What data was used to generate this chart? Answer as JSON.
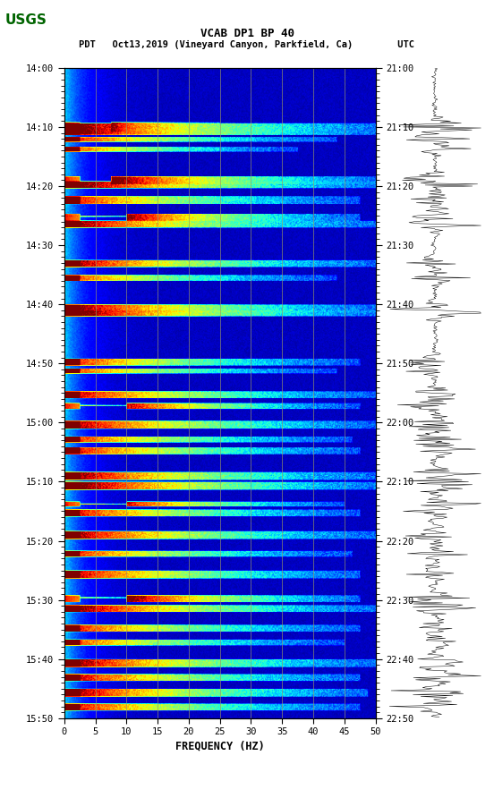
{
  "title_line1": "VCAB DP1 BP 40",
  "title_line2": "PDT   Oct13,2019 (Vineyard Canyon, Parkfield, Ca)        UTC",
  "xlabel": "FREQUENCY (HZ)",
  "freq_min": 0,
  "freq_max": 50,
  "freq_ticks": [
    0,
    5,
    10,
    15,
    20,
    25,
    30,
    35,
    40,
    45,
    50
  ],
  "time_labels_pdt": [
    "14:00",
    "14:10",
    "14:20",
    "14:30",
    "14:40",
    "14:50",
    "15:00",
    "15:10",
    "15:20",
    "15:30",
    "15:40",
    "15:50"
  ],
  "time_labels_utc": [
    "21:00",
    "21:10",
    "21:20",
    "21:30",
    "21:40",
    "21:50",
    "22:00",
    "22:10",
    "22:20",
    "22:30",
    "22:40",
    "22:50"
  ],
  "num_time_steps": 660,
  "num_freq_bins": 400,
  "vertical_line_freqs": [
    5,
    10,
    15,
    20,
    25,
    30,
    35,
    40,
    45
  ],
  "colormap": "jet",
  "bg_color": "#ffffff",
  "logo_color": "#006400",
  "vline_color": "#999966",
  "fig_width": 5.52,
  "fig_height": 8.92,
  "seismic_events_rows": [
    [
      55,
      65,
      60,
      200,
      0.85
    ],
    [
      56,
      68,
      0,
      400,
      0.95
    ],
    [
      70,
      75,
      0,
      350,
      0.8
    ],
    [
      80,
      85,
      0,
      300,
      0.75
    ],
    [
      110,
      118,
      60,
      400,
      0.9
    ],
    [
      115,
      122,
      0,
      400,
      0.95
    ],
    [
      130,
      138,
      0,
      380,
      0.8
    ],
    [
      148,
      155,
      80,
      380,
      0.85
    ],
    [
      155,
      162,
      0,
      400,
      0.9
    ],
    [
      195,
      202,
      0,
      400,
      0.88
    ],
    [
      210,
      216,
      0,
      350,
      0.75
    ],
    [
      240,
      248,
      0,
      400,
      0.92
    ],
    [
      246,
      252,
      0,
      400,
      0.95
    ],
    [
      295,
      302,
      0,
      380,
      0.78
    ],
    [
      305,
      310,
      0,
      350,
      0.75
    ],
    [
      328,
      335,
      0,
      400,
      0.85
    ],
    [
      340,
      346,
      80,
      380,
      0.8
    ],
    [
      358,
      366,
      0,
      400,
      0.88
    ],
    [
      374,
      380,
      0,
      370,
      0.78
    ],
    [
      385,
      392,
      0,
      380,
      0.82
    ],
    [
      410,
      418,
      0,
      400,
      0.9
    ],
    [
      420,
      428,
      0,
      400,
      0.95
    ],
    [
      440,
      445,
      80,
      360,
      0.78
    ],
    [
      448,
      455,
      0,
      380,
      0.82
    ],
    [
      470,
      478,
      0,
      400,
      0.88
    ],
    [
      490,
      496,
      0,
      370,
      0.78
    ],
    [
      510,
      518,
      0,
      380,
      0.85
    ],
    [
      535,
      542,
      80,
      380,
      0.88
    ],
    [
      545,
      552,
      0,
      400,
      0.92
    ],
    [
      565,
      572,
      0,
      380,
      0.8
    ],
    [
      580,
      586,
      0,
      360,
      0.75
    ],
    [
      600,
      608,
      0,
      400,
      0.9
    ],
    [
      615,
      622,
      0,
      380,
      0.85
    ],
    [
      630,
      638,
      0,
      390,
      0.88
    ],
    [
      645,
      652,
      0,
      380,
      0.82
    ]
  ]
}
